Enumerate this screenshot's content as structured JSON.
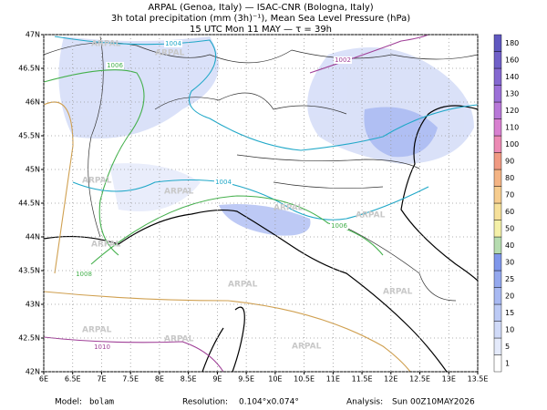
{
  "header": {
    "line1": "ARPAL (Genoa, Italy)  —  ISAC-CNR (Bologna, Italy)",
    "line2": "3h total precipitation (mm (3h)⁻¹), Mean Sea Level Pressure (hPa)",
    "line3": "15 UTC Mon 11 MAY  —  τ = 39h"
  },
  "chart_data": {
    "type": "map",
    "xlim": [
      6,
      13.5
    ],
    "xticks": [
      {
        "value": 6,
        "label": "6E"
      },
      {
        "value": 6.5,
        "label": "6.5E"
      },
      {
        "value": 7,
        "label": "7E"
      },
      {
        "value": 7.5,
        "label": "7.5E"
      },
      {
        "value": 8,
        "label": "8E"
      },
      {
        "value": 8.5,
        "label": "8.5E"
      },
      {
        "value": 9,
        "label": "9E"
      },
      {
        "value": 9.5,
        "label": "9.5E"
      },
      {
        "value": 10,
        "label": "10E"
      },
      {
        "value": 10.5,
        "label": "10.5E"
      },
      {
        "value": 11,
        "label": "11E"
      },
      {
        "value": 11.5,
        "label": "11.5E"
      },
      {
        "value": 12,
        "label": "12E"
      },
      {
        "value": 12.5,
        "label": "12.5E"
      },
      {
        "value": 13,
        "label": "13E"
      },
      {
        "value": 13.5,
        "label": "13.5E"
      }
    ],
    "ylim": [
      42,
      47
    ],
    "yticks": [
      {
        "value": 42,
        "label": "42N"
      },
      {
        "value": 42.5,
        "label": "42.5N"
      },
      {
        "value": 43,
        "label": "43N"
      },
      {
        "value": 43.5,
        "label": "43.5N"
      },
      {
        "value": 44,
        "label": "44N"
      },
      {
        "value": 44.5,
        "label": "44.5N"
      },
      {
        "value": 45,
        "label": "45N"
      },
      {
        "value": 45.5,
        "label": "45.5N"
      },
      {
        "value": 46,
        "label": "46N"
      },
      {
        "value": 46.5,
        "label": "46.5N"
      },
      {
        "value": 47,
        "label": "47N"
      }
    ],
    "grid": true,
    "watermark": "ARPAL",
    "colorbar": {
      "levels": [
        1,
        5,
        10,
        15,
        20,
        25,
        30,
        40,
        50,
        60,
        70,
        80,
        90,
        100,
        110,
        120,
        130,
        140,
        160,
        180
      ],
      "colors": [
        "#ffffff",
        "#e4eafb",
        "#d0daf8",
        "#bccaf5",
        "#a8b9f2",
        "#94a8ee",
        "#7f97eb",
        "#b6dcb0",
        "#f4f0a8",
        "#f6e09a",
        "#f6cc8e",
        "#f4b484",
        "#f09a82",
        "#ec8ab4",
        "#d880d0",
        "#b878d8",
        "#9c70d8",
        "#8468d0",
        "#7060c8",
        "#6058c0"
      ]
    },
    "contours": [
      {
        "level": 1004,
        "color": "#20a8c8"
      },
      {
        "level": 1006,
        "color": "#44b04c"
      },
      {
        "level": 1002,
        "color": "#a04098"
      },
      {
        "level": 1004,
        "color": "#20a8c8"
      },
      {
        "level": 1006,
        "color": "#44b04c"
      },
      {
        "level": 1008,
        "color": "#44b04c"
      },
      {
        "level": 1010,
        "color": "#a04098"
      }
    ]
  },
  "footer": {
    "model_label": "Model:",
    "model": "bolam",
    "resolution_label": "Resolution:",
    "resolution": "0.104°x0.074°",
    "analysis_label": "Analysis:",
    "analysis": "Sun 00Z10MAY2026"
  }
}
